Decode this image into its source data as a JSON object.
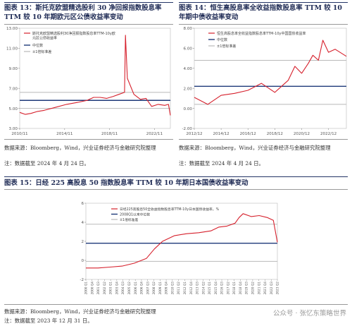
{
  "charts": [
    {
      "caption": "图表 13：斯托克欧盟精选股利 30 净回报指数股息率 TTM 较 10 年期欧元区公债收益率变动",
      "legend": [
        "斯托克欧盟精选股利30净回报指数股息率TTM-10y欧元区公债收益率",
        "中位数",
        "±1倍标准差"
      ],
      "note_source": "数据来源：Bloomberg，Wind，兴业证券经济与金融研究院整理",
      "note_date": "注：数据截至 2024 年 4 月 24 日。"
    },
    {
      "caption": "图表 14：恒生高股息率全收益指数股息率 TTM 较 10 年期中债收益率变动",
      "legend": [
        "恒生高股息率全收益指数股息率TTM-10y中国国债收益率",
        "中位数",
        "±1倍标准差"
      ],
      "note_source": "数据来源：Bloomberg，Wind，兴业证券经济与金融研究院整理",
      "note_date": "注：数据截至 2024 年 4 月 24 日。"
    },
    {
      "caption": "图表 15：日经 225 高股息 50 指数股息率 TTM 较 10 年期日本国债收益率变动",
      "legend": [
        "日经225高股息50全收益指数股息率TTM-10y日本国债收益率，%",
        "2008Q1以来中位数",
        "±1倍标准差"
      ],
      "note_source": "数据来源：Bloomberg，Wind，兴业证券经济与金融研究院整理",
      "note_date": "注：数据截至 2023 年 12 月 31 日。"
    }
  ],
  "watermark": "公众号 · 张忆东策略世界",
  "chart_data": [
    {
      "type": "line",
      "x": [
        "2010/11",
        "2011/05",
        "2011/11",
        "2012/06",
        "2013/01",
        "2014/01",
        "2015/01",
        "2016/01",
        "2016/11",
        "2017/06",
        "2018/01",
        "2018/08",
        "2019/03",
        "2019/09",
        "2020/03",
        "2020/04",
        "2020/06",
        "2021/01",
        "2021/08",
        "2022/02",
        "2022/08",
        "2023/03",
        "2023/10",
        "2024/02",
        "2024/04"
      ],
      "series": [
        {
          "name": "斯托克欧盟精选股利30净回报指数股息率TTM-10y欧元区公债收益率",
          "values": [
            4.6,
            4.4,
            4.5,
            4.7,
            4.8,
            5.1,
            5.4,
            5.6,
            5.8,
            6.1,
            6.1,
            6.0,
            6.2,
            6.4,
            6.6,
            12.3,
            8.0,
            6.4,
            5.9,
            6.0,
            5.2,
            5.4,
            5.3,
            5.4,
            4.3
          ]
        }
      ],
      "median": 5.8,
      "std_upper": 6.6,
      "std_lower": 5.0,
      "xticks": [
        "2010/11",
        "2014/11",
        "2018/11",
        "2022/11"
      ],
      "xlim": [
        "2010/11",
        "2024/04"
      ],
      "yticks": [
        3.0,
        5.0,
        7.0,
        9.0,
        11.0,
        13.0
      ],
      "ylim": [
        3.0,
        13.0
      ],
      "title": "",
      "xlabel": "",
      "ylabel": ""
    },
    {
      "type": "line",
      "x": [
        "2012/12",
        "2013/12",
        "2014/12",
        "2015/12",
        "2016/12",
        "2017/12",
        "2018/12",
        "2019/12",
        "2020/06",
        "2020/12",
        "2021/06",
        "2021/10",
        "2022/03",
        "2022/07",
        "2022/12",
        "2023/06",
        "2024/04"
      ],
      "series": [
        {
          "name": "恒生高股息率全收益指数股息率TTM-10y中国国债收益率",
          "values": [
            1.1,
            0.4,
            1.3,
            1.5,
            1.8,
            2.5,
            1.6,
            2.8,
            4.2,
            3.5,
            4.5,
            5.3,
            4.8,
            6.8,
            5.6,
            5.9,
            5.2
          ]
        }
      ],
      "median": 2.2,
      "std_upper": 4.8,
      "std_lower": 0.4,
      "xticks": [
        "2012/12",
        "2014/12",
        "2016/12",
        "2018/12",
        "2020/12",
        "2022/12"
      ],
      "xlim": [
        "2012/12",
        "2024/04"
      ],
      "yticks": [
        -2.0,
        0.0,
        2.0,
        4.0,
        6.0,
        8.0
      ],
      "ylim": [
        -2.0,
        8.0
      ],
      "title": "",
      "xlabel": "",
      "ylabel": ""
    },
    {
      "type": "line",
      "x": [
        "2000Q1",
        "2001Q3",
        "2003Q1",
        "2004Q3",
        "2006Q1",
        "2007Q3",
        "2008Q3",
        "2009Q3",
        "2011Q1",
        "2012Q3",
        "2014Q1",
        "2015Q3",
        "2016Q3",
        "2017Q3",
        "2018Q3",
        "2019Q1",
        "2019Q3",
        "2020Q3",
        "2021Q3",
        "2022Q3",
        "2023Q2",
        "2023Q4"
      ],
      "series": [
        {
          "name": "日经225高股息50全收益指数股息率TTM-10y日本国债收益率，%",
          "values": [
            -0.8,
            -0.8,
            -0.7,
            -0.6,
            -0.3,
            0.2,
            1.2,
            2.0,
            2.6,
            2.8,
            2.9,
            3.1,
            3.5,
            3.6,
            3.9,
            4.5,
            4.9,
            4.6,
            4.7,
            4.5,
            4.2,
            1.9
          ]
        }
      ],
      "median": 1.8,
      "std_upper": 3.8,
      "std_lower": -0.1,
      "xticks": [
        "2000 Q1",
        "2000 Q4",
        "2001 Q3",
        "2002 Q2",
        "2003 Q1",
        "2003 Q4",
        "2004 Q3",
        "2005 Q2",
        "2006 Q1",
        "2006 Q4",
        "2007 Q3",
        "2008 Q2",
        "2009 Q1",
        "2009 Q4",
        "2010 Q3",
        "2011 Q2",
        "2012 Q1",
        "2012 Q4",
        "2013 Q3",
        "2014 Q2",
        "2015 Q1",
        "2015 Q4",
        "2016 Q3",
        "2017 Q2",
        "2018 Q1",
        "2018 Q4",
        "2019 Q3",
        "2020 Q2",
        "2021 Q1",
        "2021 Q4",
        "2022 Q3",
        "2023 Q2"
      ],
      "yticks": [
        -2,
        0,
        2,
        4,
        6
      ],
      "ylim": [
        -2,
        6
      ],
      "title": "",
      "xlabel": "",
      "ylabel": ""
    }
  ],
  "colors": {
    "series": "#d6202c",
    "median": "#1f3a7a",
    "std": "#b9b9b9",
    "caption": "#1f2b55",
    "rule": "#243466"
  }
}
